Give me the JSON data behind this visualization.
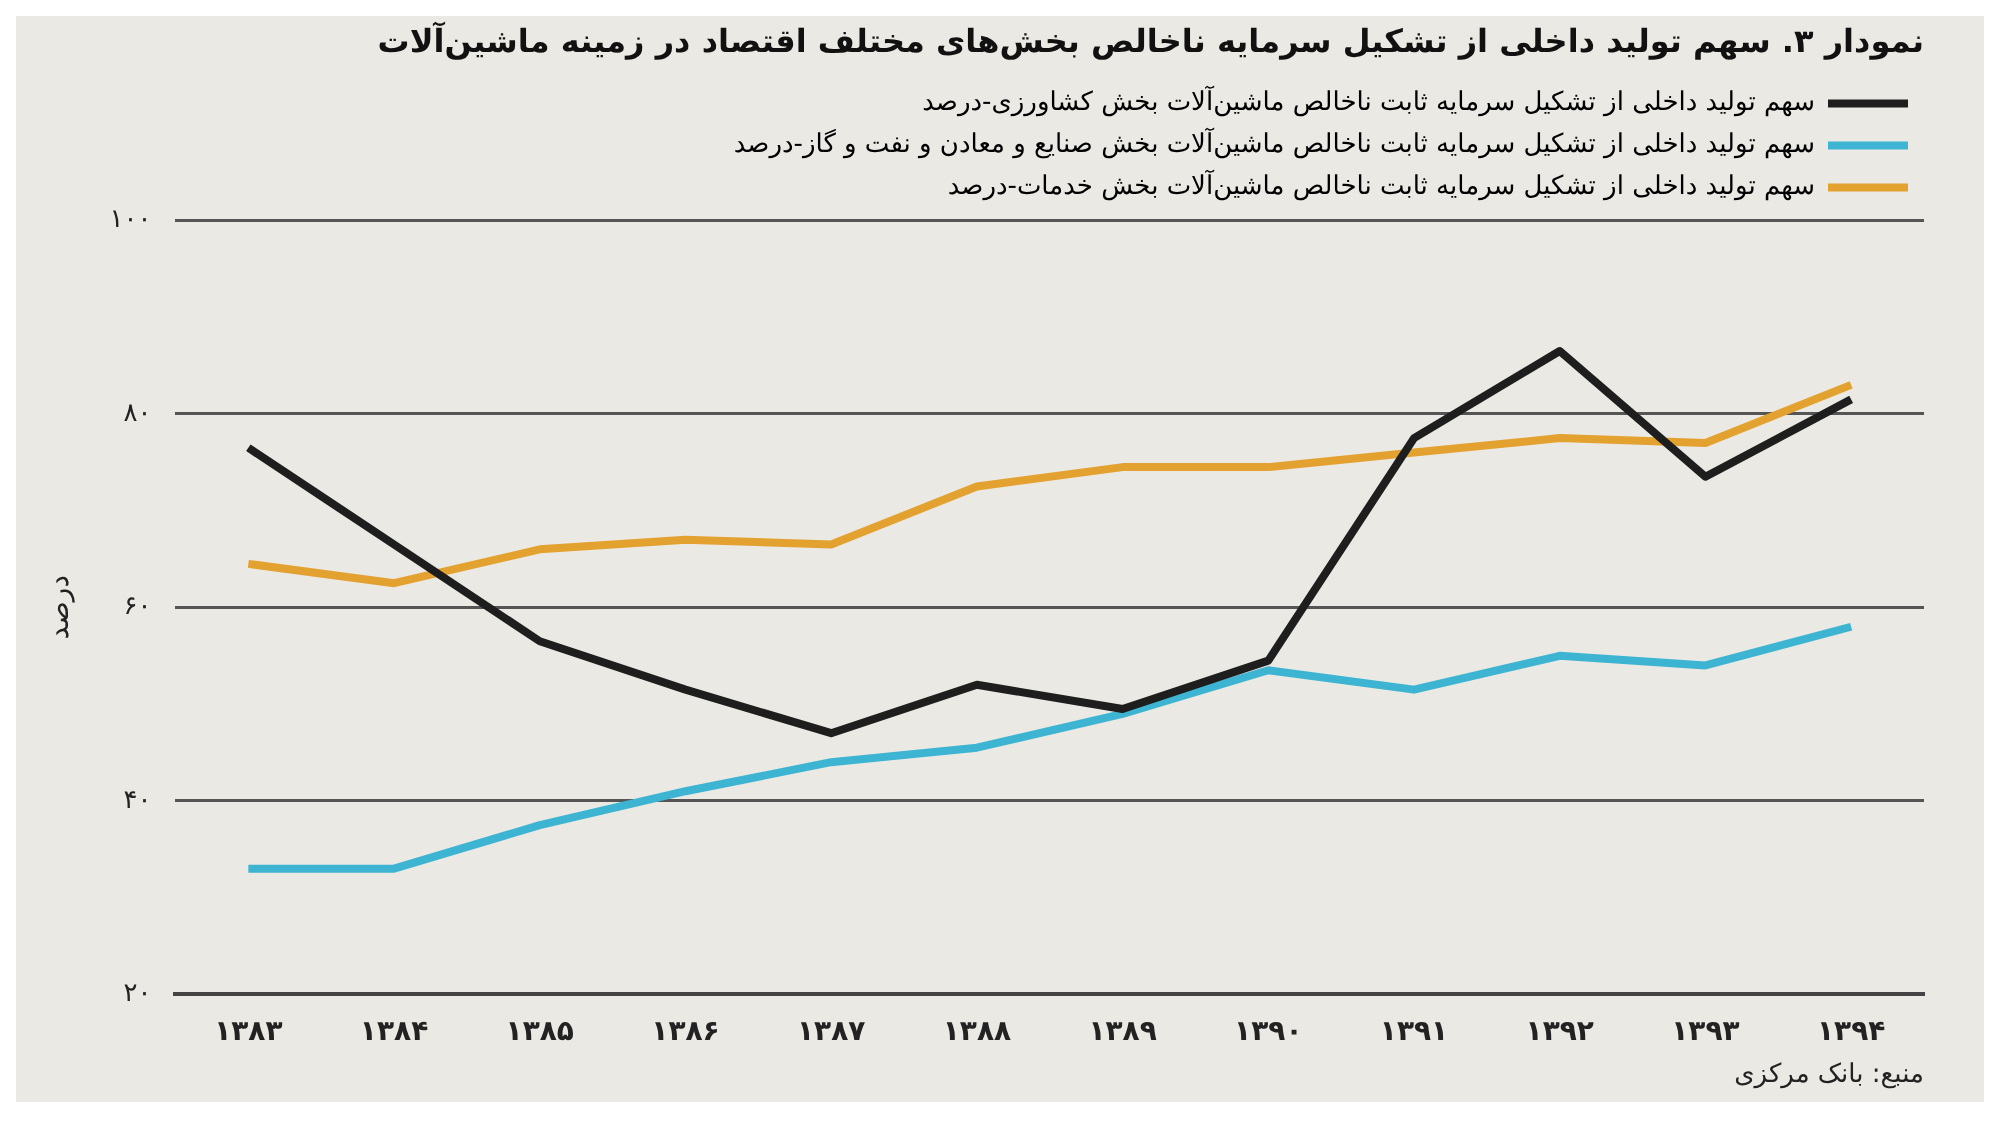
{
  "chart_data": {
    "type": "line",
    "title": "نمودار ۳. سهم تولید داخلی از تشکیل سرمایه ناخالص بخش‌های مختلف اقتصاد در زمینه ماشین‌آلات",
    "ylabel": "درصد",
    "annotations": [
      "منبع: بانک مرکزی"
    ],
    "categories": [
      "۱۳۸۳",
      "۱۳۸۴",
      "۱۳۸۵",
      "۱۳۸۶",
      "۱۳۸۷",
      "۱۳۸۸",
      "۱۳۸۹",
      "۱۳۹۰",
      "۱۳۹۱",
      "۱۳۹۲",
      "۱۳۹۳",
      "۱۳۹۴"
    ],
    "series": [
      {
        "name": "سهم تولید داخلی از تشکیل سرمایه ثابت ناخالص ماشین‌آلات بخش کشاورزی-درصد",
        "color": "#1e1e1e",
        "values": [
          76.5,
          66.5,
          56.5,
          51.5,
          47,
          52,
          49.5,
          54.5,
          77.5,
          86.5,
          73.5,
          81.5
        ]
      },
      {
        "name": "سهم تولید داخلی از تشکیل سرمایه ثابت ناخالص ماشین‌آلات بخش صنایع و معادن و نفت و گاز-درصد",
        "color": "#3db5d2",
        "values": [
          33,
          33,
          37.5,
          41,
          44,
          45.5,
          49,
          53.5,
          51.5,
          55,
          54,
          58
        ]
      },
      {
        "name": "سهم تولید داخلی از تشکیل سرمایه ثابت ناخالص ماشین‌آلات بخش خدمات-درصد",
        "color": "#e3a12f",
        "values": [
          64.5,
          62.5,
          66,
          67,
          66.5,
          72.5,
          74.5,
          74.5,
          76,
          77.5,
          77,
          83
        ]
      }
    ],
    "ylim": [
      20,
      100
    ],
    "yticks": [
      {
        "value": 20,
        "label": "۲۰"
      },
      {
        "value": 40,
        "label": "۴۰"
      },
      {
        "value": 60,
        "label": "۶۰"
      },
      {
        "value": 80,
        "label": "۸۰"
      },
      {
        "value": 100,
        "label": "۱۰۰"
      }
    ],
    "grid": "y",
    "legend": "top right",
    "marker": "none",
    "line_style": "solid"
  }
}
